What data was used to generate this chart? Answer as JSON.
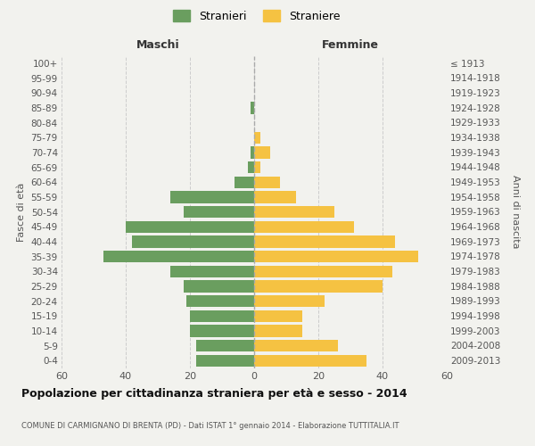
{
  "age_groups": [
    "0-4",
    "5-9",
    "10-14",
    "15-19",
    "20-24",
    "25-29",
    "30-34",
    "35-39",
    "40-44",
    "45-49",
    "50-54",
    "55-59",
    "60-64",
    "65-69",
    "70-74",
    "75-79",
    "80-84",
    "85-89",
    "90-94",
    "95-99",
    "100+"
  ],
  "birth_years": [
    "2009-2013",
    "2004-2008",
    "1999-2003",
    "1994-1998",
    "1989-1993",
    "1984-1988",
    "1979-1983",
    "1974-1978",
    "1969-1973",
    "1964-1968",
    "1959-1963",
    "1954-1958",
    "1949-1953",
    "1944-1948",
    "1939-1943",
    "1934-1938",
    "1929-1933",
    "1924-1928",
    "1919-1923",
    "1914-1918",
    "≤ 1913"
  ],
  "males": [
    18,
    18,
    20,
    20,
    21,
    22,
    26,
    47,
    38,
    40,
    22,
    26,
    6,
    2,
    1,
    0,
    0,
    1,
    0,
    0,
    0
  ],
  "females": [
    35,
    26,
    15,
    15,
    22,
    40,
    43,
    51,
    44,
    31,
    25,
    13,
    8,
    2,
    5,
    2,
    0,
    0,
    0,
    0,
    0
  ],
  "male_color": "#6a9e5f",
  "female_color": "#f5c242",
  "background_color": "#f2f2ee",
  "grid_color": "#cccccc",
  "title": "Popolazione per cittadinanza straniera per età e sesso - 2014",
  "subtitle": "COMUNE DI CARMIGNANO DI BRENTA (PD) - Dati ISTAT 1° gennaio 2014 - Elaborazione TUTTITALIA.IT",
  "xlabel_left": "Maschi",
  "xlabel_right": "Femmine",
  "ylabel_left": "Fasce di età",
  "ylabel_right": "Anni di nascita",
  "legend_male": "Stranieri",
  "legend_female": "Straniere",
  "xlim": 60
}
